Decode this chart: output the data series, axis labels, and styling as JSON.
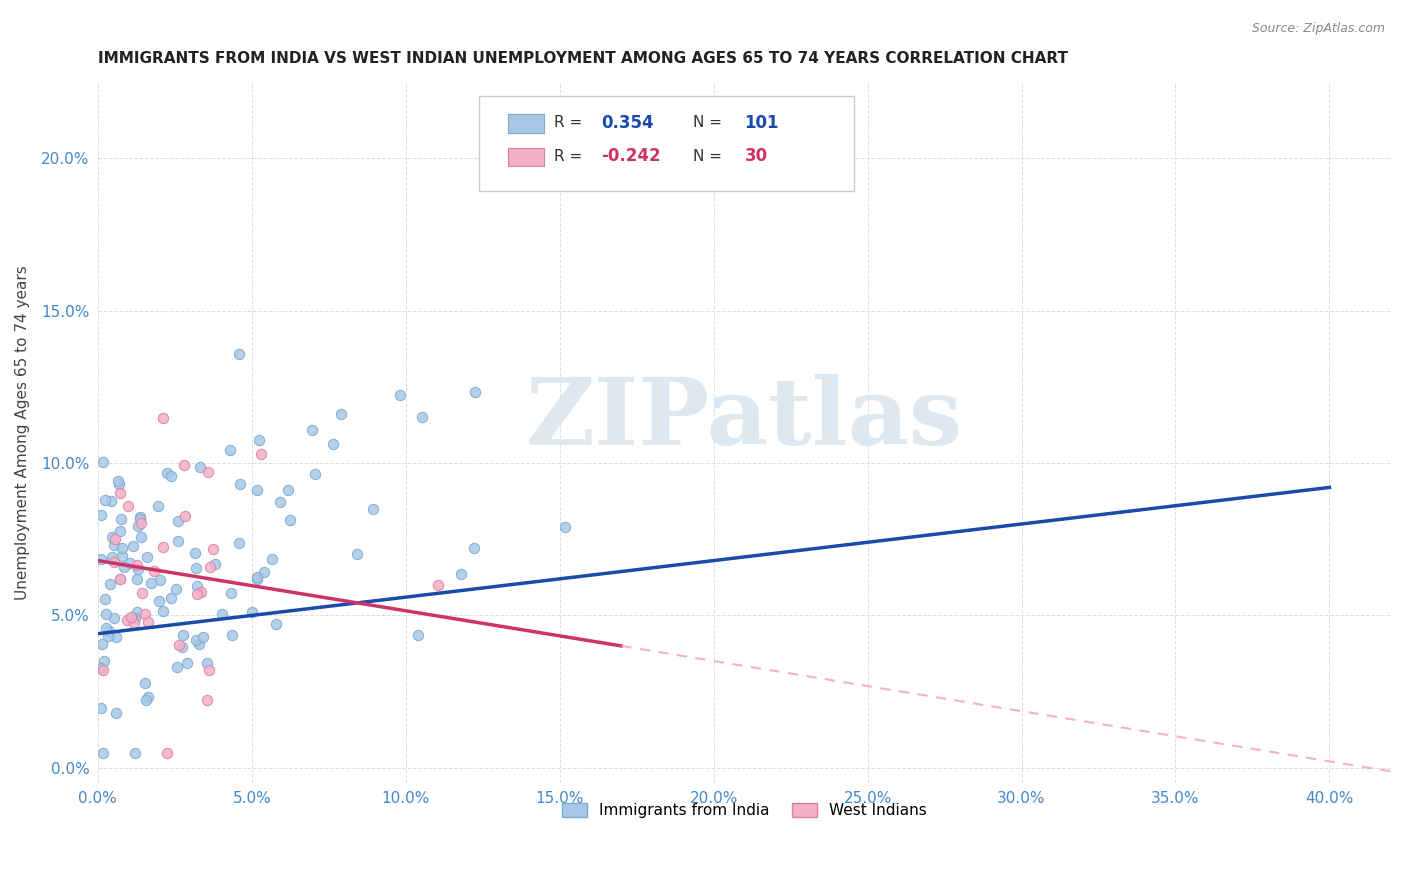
{
  "title": "IMMIGRANTS FROM INDIA VS WEST INDIAN UNEMPLOYMENT AMONG AGES 65 TO 74 YEARS CORRELATION CHART",
  "source": "Source: ZipAtlas.com",
  "ylabel": "Unemployment Among Ages 65 to 74 years",
  "xlim": [
    0.0,
    0.42
  ],
  "ylim": [
    -0.005,
    0.225
  ],
  "india_R": 0.354,
  "india_N": 101,
  "west_R": -0.242,
  "west_N": 30,
  "india_color": "#a8c8e8",
  "india_edge_color": "#7aaad0",
  "india_line_color": "#1a4aaa",
  "west_color": "#f4b0c8",
  "west_edge_color": "#e080a0",
  "west_line_color": "#cc3366",
  "west_dash_color": "#f0a0b8",
  "background_color": "#ffffff",
  "grid_color": "#dddddd",
  "title_color": "#222222",
  "axis_tick_color": "#4488cc",
  "watermark_text": "ZIPatlas",
  "watermark_color": "#dde8f0",
  "india_seed": 42,
  "west_seed": 123,
  "india_line_y0": 0.044,
  "india_line_y1": 0.092,
  "west_line_x0": 0.0,
  "west_line_y0": 0.068,
  "west_line_x1": 0.17,
  "west_line_y1": 0.04
}
